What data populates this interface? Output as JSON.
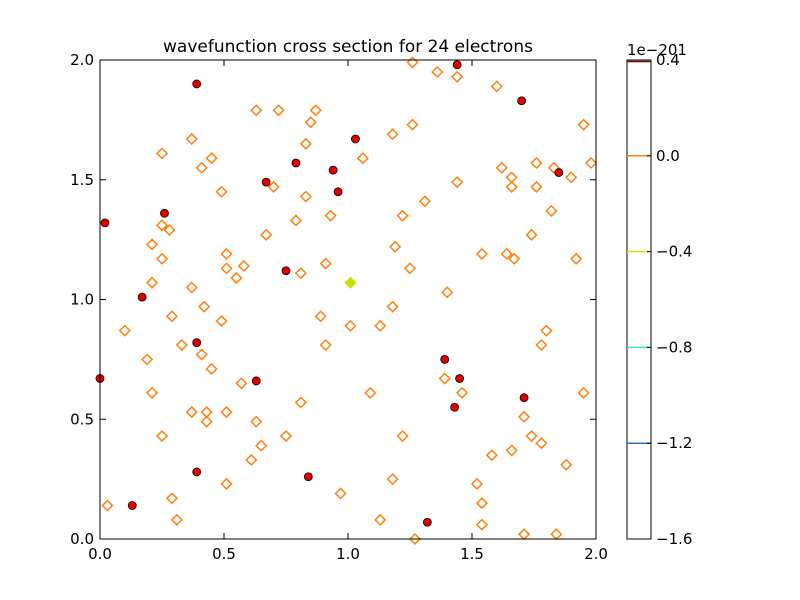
{
  "chart_data": {
    "type": "scatter",
    "title": "wavefunction cross section for 24 electrons",
    "xlabel": "",
    "ylabel": "",
    "xlim": [
      0.0,
      2.0
    ],
    "ylim": [
      0.0,
      2.0
    ],
    "xticks": [
      "0.0",
      "0.5",
      "1.0",
      "1.5",
      "2.0"
    ],
    "yticks": [
      "0.0",
      "0.5",
      "1.0",
      "1.5",
      "2.0"
    ],
    "grid": false,
    "colorbar": {
      "offset_label": "1e−201",
      "range": [
        -1.6,
        0.4
      ],
      "ticks": [
        {
          "label": "0.4",
          "value": 0.4
        },
        {
          "label": "0.0",
          "value": 0.0
        },
        {
          "label": "−0.4",
          "value": -0.4
        },
        {
          "label": "−0.8",
          "value": -0.8
        },
        {
          "label": "−1.2",
          "value": -1.2
        },
        {
          "label": "−1.6",
          "value": -1.6
        }
      ],
      "level_lines": [
        {
          "value": 0.4,
          "color": "#7f0000"
        },
        {
          "value": 0.0,
          "color": "#ff7f0e"
        },
        {
          "value": -0.4,
          "color": "#d4e60a"
        },
        {
          "value": -0.8,
          "color": "#40e0c0"
        },
        {
          "value": -1.2,
          "color": "#3070c8"
        }
      ]
    },
    "series": [
      {
        "kind": "electrons",
        "color": "#e00000",
        "points": [
          [
            0.39,
            1.9
          ],
          [
            1.44,
            1.98
          ],
          [
            1.7,
            1.83
          ],
          [
            1.03,
            1.67
          ],
          [
            0.79,
            1.57
          ],
          [
            0.94,
            1.54
          ],
          [
            1.85,
            1.53
          ],
          [
            0.67,
            1.49
          ],
          [
            0.96,
            1.45
          ],
          [
            0.26,
            1.36
          ],
          [
            0.02,
            1.32
          ],
          [
            0.75,
            1.12
          ],
          [
            0.39,
            0.82
          ],
          [
            1.39,
            0.75
          ],
          [
            0.0,
            0.67
          ],
          [
            0.63,
            0.66
          ],
          [
            1.45,
            0.67
          ],
          [
            1.71,
            0.59
          ],
          [
            1.43,
            0.55
          ],
          [
            0.39,
            0.28
          ],
          [
            0.84,
            0.26
          ],
          [
            0.13,
            0.14
          ],
          [
            1.32,
            0.07
          ],
          [
            0.17,
            1.01
          ]
        ]
      },
      {
        "kind": "zero-contours",
        "color": "#ff7f0e",
        "points": [
          [
            1.26,
            1.99
          ],
          [
            1.36,
            1.95
          ],
          [
            1.44,
            1.93
          ],
          [
            1.6,
            1.89
          ],
          [
            0.63,
            1.79
          ],
          [
            0.72,
            1.79
          ],
          [
            0.87,
            1.79
          ],
          [
            1.95,
            1.73
          ],
          [
            0.85,
            1.74
          ],
          [
            1.26,
            1.73
          ],
          [
            0.37,
            1.67
          ],
          [
            1.18,
            1.69
          ],
          [
            0.83,
            1.65
          ],
          [
            0.25,
            1.61
          ],
          [
            0.45,
            1.59
          ],
          [
            1.06,
            1.59
          ],
          [
            1.76,
            1.57
          ],
          [
            0.41,
            1.55
          ],
          [
            1.62,
            1.55
          ],
          [
            1.83,
            1.55
          ],
          [
            1.98,
            1.57
          ],
          [
            1.66,
            1.51
          ],
          [
            1.9,
            1.51
          ],
          [
            1.44,
            1.49
          ],
          [
            0.7,
            1.47
          ],
          [
            1.66,
            1.47
          ],
          [
            1.76,
            1.47
          ],
          [
            0.49,
            1.45
          ],
          [
            0.83,
            1.43
          ],
          [
            1.31,
            1.41
          ],
          [
            0.25,
            1.31
          ],
          [
            1.82,
            1.37
          ],
          [
            0.93,
            1.35
          ],
          [
            1.22,
            1.35
          ],
          [
            0.79,
            1.33
          ],
          [
            0.28,
            1.29
          ],
          [
            0.67,
            1.27
          ],
          [
            1.74,
            1.27
          ],
          [
            0.21,
            1.23
          ],
          [
            1.19,
            1.22
          ],
          [
            1.54,
            1.19
          ],
          [
            0.51,
            1.19
          ],
          [
            1.64,
            1.19
          ],
          [
            1.67,
            1.17
          ],
          [
            0.25,
            1.17
          ],
          [
            0.58,
            1.14
          ],
          [
            0.51,
            1.13
          ],
          [
            0.91,
            1.15
          ],
          [
            1.92,
            1.17
          ],
          [
            1.25,
            1.13
          ],
          [
            0.81,
            1.11
          ],
          [
            0.55,
            1.09
          ],
          [
            0.21,
            1.07
          ],
          [
            0.37,
            1.05
          ],
          [
            1.4,
            1.03
          ],
          [
            0.42,
            0.97
          ],
          [
            1.18,
            0.97
          ],
          [
            0.29,
            0.93
          ],
          [
            0.89,
            0.93
          ],
          [
            0.49,
            0.91
          ],
          [
            1.01,
            0.89
          ],
          [
            1.13,
            0.89
          ],
          [
            1.8,
            0.87
          ],
          [
            0.1,
            0.87
          ],
          [
            0.33,
            0.81
          ],
          [
            0.91,
            0.81
          ],
          [
            1.78,
            0.81
          ],
          [
            0.41,
            0.77
          ],
          [
            0.19,
            0.75
          ],
          [
            0.45,
            0.71
          ],
          [
            1.39,
            0.67
          ],
          [
            0.57,
            0.65
          ],
          [
            1.09,
            0.61
          ],
          [
            0.21,
            0.61
          ],
          [
            1.95,
            0.61
          ],
          [
            1.46,
            0.61
          ],
          [
            0.81,
            0.57
          ],
          [
            0.43,
            0.53
          ],
          [
            0.37,
            0.53
          ],
          [
            0.51,
            0.53
          ],
          [
            1.71,
            0.51
          ],
          [
            0.43,
            0.49
          ],
          [
            0.63,
            0.49
          ],
          [
            0.25,
            0.43
          ],
          [
            0.75,
            0.43
          ],
          [
            1.22,
            0.43
          ],
          [
            1.74,
            0.43
          ],
          [
            1.78,
            0.4
          ],
          [
            0.65,
            0.39
          ],
          [
            1.66,
            0.37
          ],
          [
            1.58,
            0.35
          ],
          [
            0.61,
            0.33
          ],
          [
            1.88,
            0.31
          ],
          [
            1.18,
            0.25
          ],
          [
            1.52,
            0.23
          ],
          [
            0.51,
            0.23
          ],
          [
            0.97,
            0.19
          ],
          [
            0.29,
            0.17
          ],
          [
            1.54,
            0.15
          ],
          [
            0.03,
            0.14
          ],
          [
            0.31,
            0.08
          ],
          [
            1.13,
            0.08
          ],
          [
            1.54,
            0.06
          ],
          [
            1.71,
            0.02
          ],
          [
            1.84,
            0.02
          ],
          [
            1.27,
            0.0
          ]
        ]
      },
      {
        "kind": "negative-contours",
        "color": "#c8e000",
        "points": [
          [
            1.01,
            1.07
          ]
        ]
      }
    ]
  }
}
